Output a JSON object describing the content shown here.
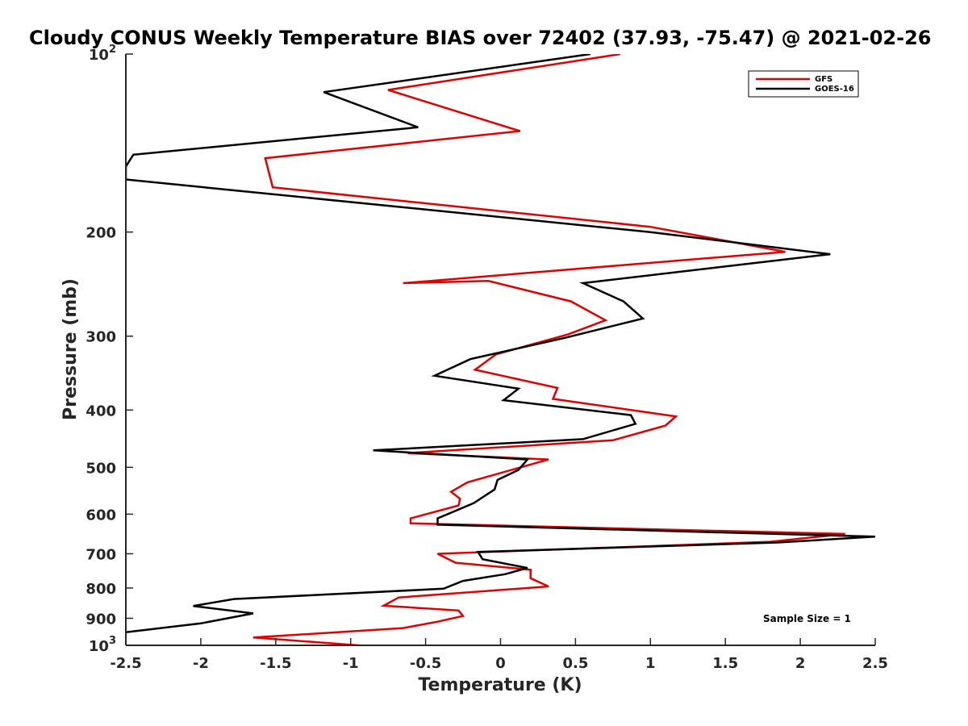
{
  "chart_data": {
    "type": "line",
    "title": "Cloudy CONUS Weekly Temperature BIAS over 72402 (37.93, -75.47) @ 2021-02-26",
    "xlabel": "Temperature (K)",
    "ylabel": "Pressure (mb)",
    "xlim": [
      -2.5,
      2.5
    ],
    "ylim": [
      1000,
      100
    ],
    "y_scale": "log",
    "y_reversed": true,
    "grid": false,
    "legend_position": "top-right",
    "x_ticks": [
      -2.5,
      -2,
      -1.5,
      -1,
      -0.5,
      0,
      0.5,
      1,
      1.5,
      2,
      2.5
    ],
    "x_tick_labels": [
      "-2.5",
      "-2",
      "-1.5",
      "-1",
      "-0.5",
      "0",
      "0.5",
      "1",
      "1.5",
      "2",
      "2.5"
    ],
    "y_ticks": [
      {
        "value": 100,
        "base": "10",
        "exp": "2"
      },
      {
        "value": 200,
        "label": "200"
      },
      {
        "value": 300,
        "label": "300"
      },
      {
        "value": 400,
        "label": "400"
      },
      {
        "value": 500,
        "label": "500"
      },
      {
        "value": 600,
        "label": "600"
      },
      {
        "value": 700,
        "label": "700"
      },
      {
        "value": 800,
        "label": "800"
      },
      {
        "value": 900,
        "label": "900"
      },
      {
        "value": 1000,
        "base": "10",
        "exp": "3"
      }
    ],
    "series": [
      {
        "name": "GFS",
        "color": "#e00000",
        "points": [
          [
            0.8,
            100
          ],
          [
            -0.75,
            115
          ],
          [
            0.13,
            135
          ],
          [
            -1.57,
            150
          ],
          [
            -1.52,
            168
          ],
          [
            1.0,
            196
          ],
          [
            1.55,
            208
          ],
          [
            1.9,
            216
          ],
          [
            -0.65,
            244
          ],
          [
            -0.08,
            242
          ],
          [
            0.47,
            262
          ],
          [
            0.7,
            282
          ],
          [
            0.45,
            298
          ],
          [
            -0.03,
            322
          ],
          [
            -0.17,
            342
          ],
          [
            0.38,
            367
          ],
          [
            0.35,
            383
          ],
          [
            1.17,
            410
          ],
          [
            1.1,
            425
          ],
          [
            0.75,
            450
          ],
          [
            -0.62,
            473
          ],
          [
            0.32,
            485
          ],
          [
            -0.22,
            530
          ],
          [
            -0.33,
            550
          ],
          [
            -0.27,
            565
          ],
          [
            -0.28,
            580
          ],
          [
            -0.6,
            610
          ],
          [
            -0.6,
            622
          ],
          [
            2.3,
            648
          ],
          [
            1.8,
            668
          ],
          [
            -0.42,
            700
          ],
          [
            -0.3,
            725
          ],
          [
            0.2,
            745
          ],
          [
            0.2,
            770
          ],
          [
            0.32,
            795
          ],
          [
            -0.68,
            830
          ],
          [
            -0.78,
            857
          ],
          [
            -0.28,
            873
          ],
          [
            -0.25,
            892
          ],
          [
            -0.42,
            912
          ],
          [
            -0.65,
            935
          ],
          [
            -1.65,
            970
          ],
          [
            -0.95,
            1000
          ]
        ]
      },
      {
        "name": "GOES-16",
        "color": "#000000",
        "points": [
          [
            0.6,
            100
          ],
          [
            -1.18,
            116
          ],
          [
            -0.55,
            133
          ],
          [
            -2.45,
            148
          ],
          [
            -2.5,
            155
          ],
          [
            -2.5,
            163
          ],
          [
            0.65,
            196
          ],
          [
            1.0,
            200
          ],
          [
            2.2,
            218
          ],
          [
            0.55,
            244
          ],
          [
            0.82,
            262
          ],
          [
            0.95,
            280
          ],
          [
            0.43,
            302
          ],
          [
            -0.2,
            328
          ],
          [
            -0.44,
            350
          ],
          [
            0.12,
            368
          ],
          [
            0.02,
            385
          ],
          [
            0.87,
            408
          ],
          [
            0.9,
            422
          ],
          [
            0.55,
            448
          ],
          [
            -0.85,
            468
          ],
          [
            0.18,
            485
          ],
          [
            0.12,
            505
          ],
          [
            -0.02,
            525
          ],
          [
            -0.04,
            545
          ],
          [
            -0.18,
            575
          ],
          [
            -0.42,
            610
          ],
          [
            -0.42,
            625
          ],
          [
            2.5,
            655
          ],
          [
            1.85,
            670
          ],
          [
            -0.15,
            695
          ],
          [
            -0.12,
            715
          ],
          [
            0.18,
            740
          ],
          [
            0.03,
            758
          ],
          [
            -0.25,
            778
          ],
          [
            -0.38,
            802
          ],
          [
            -1.78,
            835
          ],
          [
            -2.05,
            858
          ],
          [
            -1.65,
            883
          ],
          [
            -2.0,
            918
          ],
          [
            -2.5,
            950
          ]
        ]
      }
    ],
    "annotations": [
      "Sample Size = 1"
    ]
  }
}
